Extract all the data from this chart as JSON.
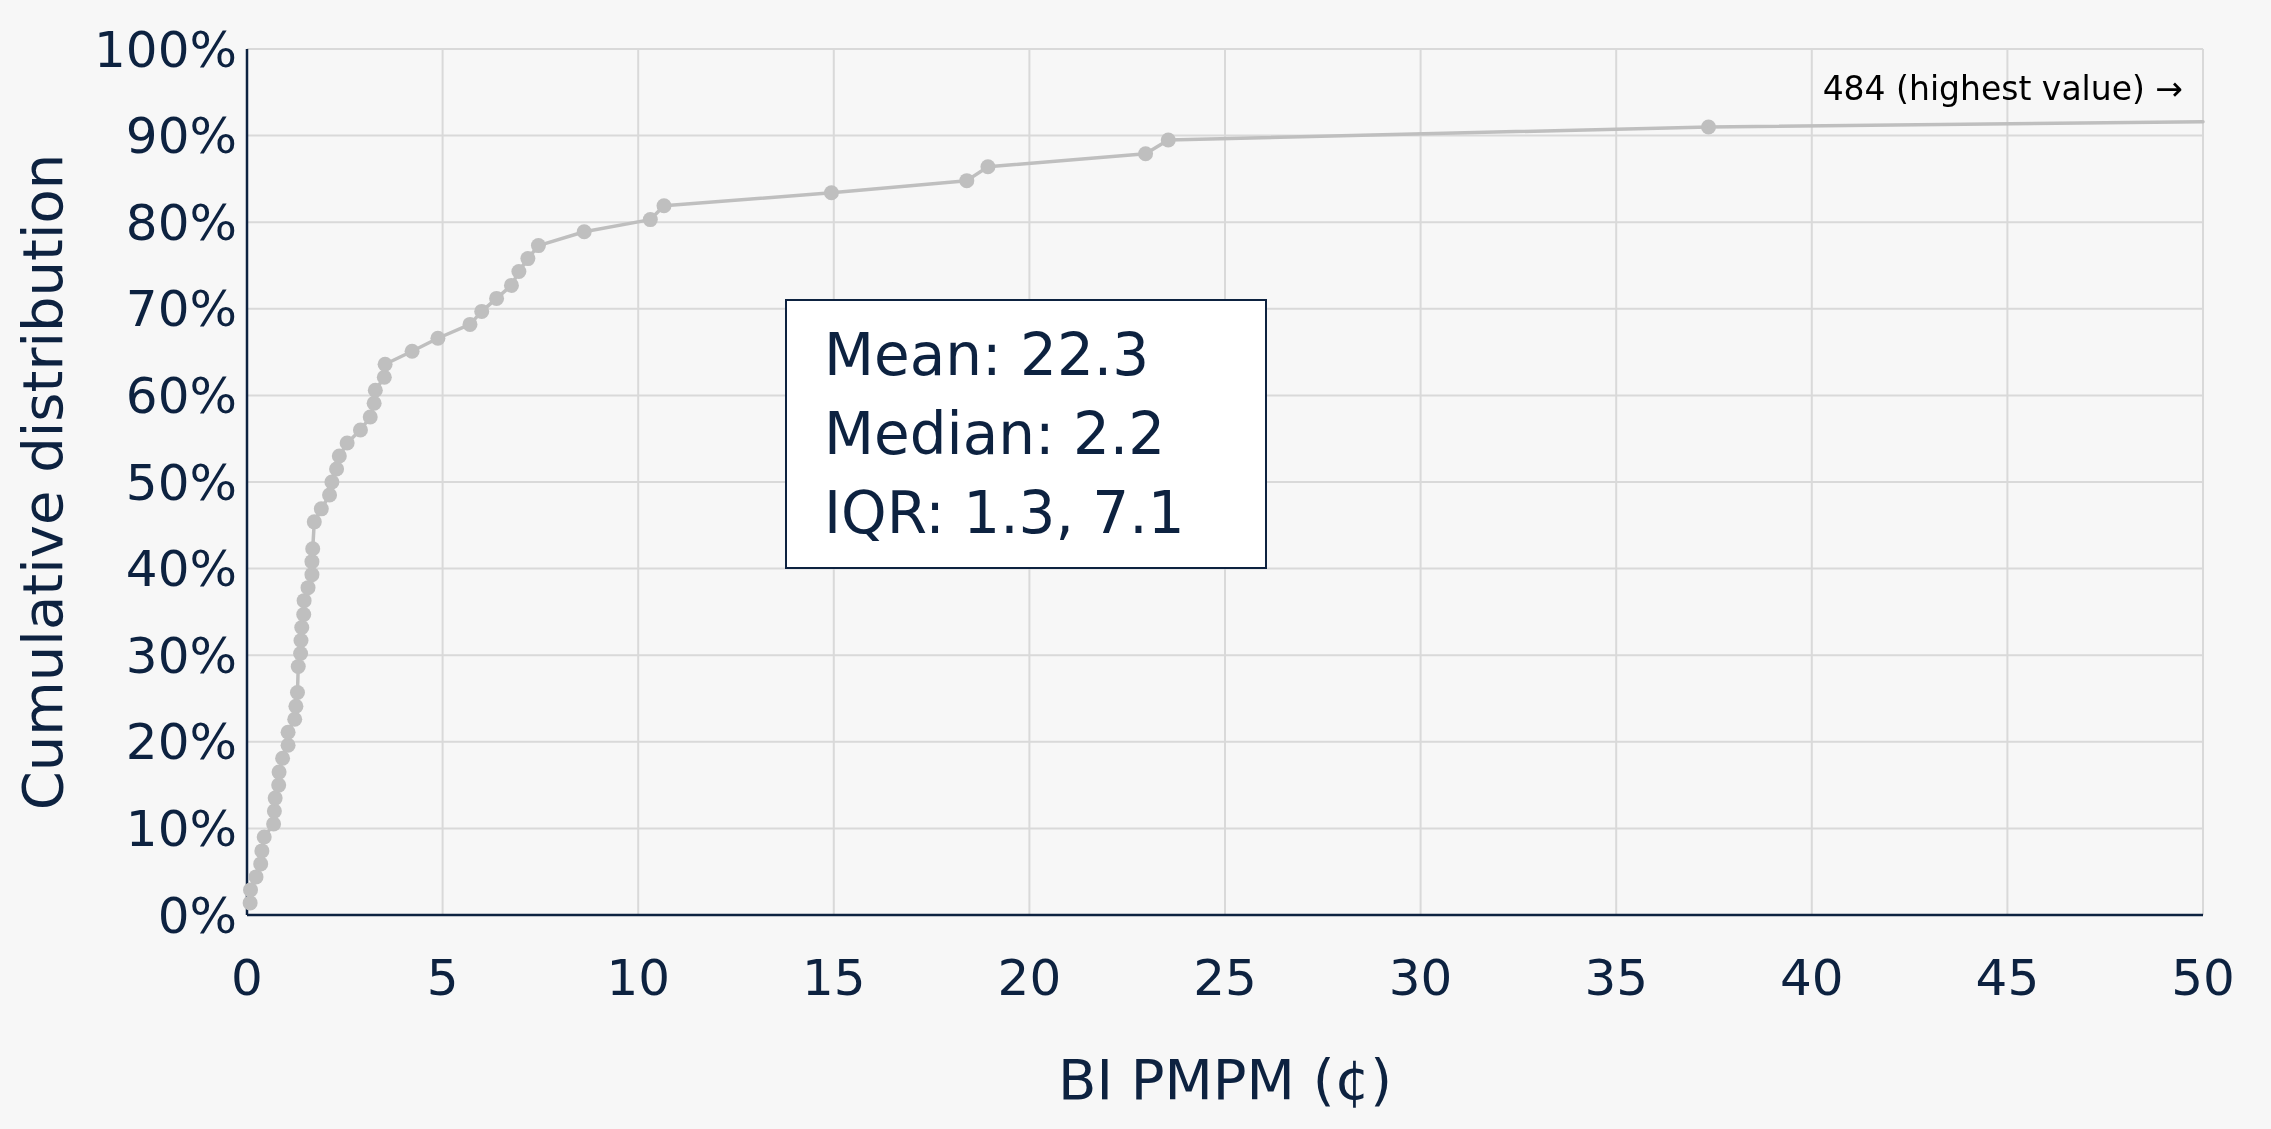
{
  "chart_data": {
    "type": "line",
    "xlabel": "BI PMPM (¢)",
    "ylabel": "Cumulative distribution",
    "xlim": [
      0,
      50
    ],
    "xticks": [
      0,
      5,
      10,
      15,
      20,
      25,
      30,
      35,
      40,
      45,
      50
    ],
    "ylim": [
      0,
      100
    ],
    "yticks": [
      {
        "value": 0,
        "label": "0%"
      },
      {
        "value": 10,
        "label": "10%"
      },
      {
        "value": 20,
        "label": "20%"
      },
      {
        "value": 30,
        "label": "30%"
      },
      {
        "value": 40,
        "label": "40%"
      },
      {
        "value": 50,
        "label": "50%"
      },
      {
        "value": 60,
        "label": "60%"
      },
      {
        "value": 70,
        "label": "70%"
      },
      {
        "value": 80,
        "label": "80%"
      },
      {
        "value": 90,
        "label": "90%"
      },
      {
        "value": 100,
        "label": "100%"
      }
    ],
    "grid": true,
    "marker": "circle",
    "line_style": "solid",
    "annotations": [
      "484 (highest value) →",
      "Mean: 22.3",
      "Median: 2.2",
      "IQR: 1.3, 7.1"
    ],
    "series": [
      {
        "color": "#bfbfbf",
        "x": [
          0.08,
          0.09,
          0.23,
          0.35,
          0.38,
          0.44,
          0.68,
          0.7,
          0.72,
          0.81,
          0.82,
          0.91,
          1.05,
          1.05,
          1.22,
          1.25,
          1.29,
          1.31,
          1.37,
          1.38,
          1.4,
          1.45,
          1.46,
          1.56,
          1.66,
          1.66,
          1.68,
          1.72,
          1.9,
          2.11,
          2.17,
          2.29,
          2.36,
          2.56,
          2.9,
          3.15,
          3.25,
          3.28,
          3.51,
          3.53,
          4.22,
          4.88,
          5.7,
          6.0,
          6.38,
          6.76,
          6.95,
          7.18,
          7.45,
          8.62,
          10.31,
          10.66,
          14.94,
          18.4,
          18.94,
          22.97,
          23.55,
          37.36
        ],
        "values": [
          1.4,
          2.9,
          4.4,
          5.9,
          7.4,
          9.0,
          10.5,
          12.0,
          13.5,
          15.0,
          16.5,
          18.1,
          19.6,
          21.1,
          22.6,
          24.1,
          25.7,
          28.7,
          30.2,
          31.7,
          33.2,
          34.7,
          36.3,
          37.8,
          39.3,
          40.8,
          42.3,
          45.4,
          46.9,
          48.5,
          50.0,
          51.5,
          53.0,
          54.5,
          56.0,
          57.5,
          59.1,
          60.6,
          62.1,
          63.6,
          65.1,
          66.6,
          68.2,
          69.7,
          71.2,
          72.7,
          74.3,
          75.8,
          77.3,
          78.9,
          80.3,
          81.9,
          83.4,
          84.8,
          86.4,
          87.9,
          89.5,
          91.0
        ]
      },
      {
        "color": "#bfbfbf",
        "marker": "none",
        "x": [
          37.36,
          50
        ],
        "values": [
          91.0,
          91.6
        ]
      }
    ]
  }
}
